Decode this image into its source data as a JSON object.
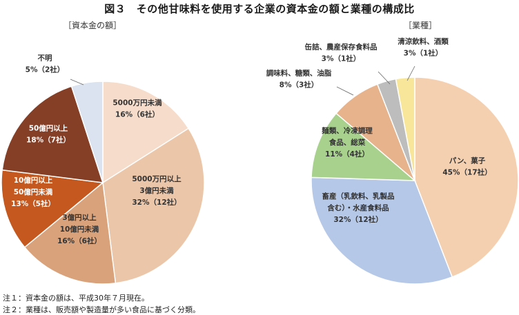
{
  "title": "図３　その他甘味料を使用する企業の資本金の額と業種の構成比",
  "notes": [
    "注１：資本金の額は、平成30年７月現在。",
    "注２：業種は、販売額や製造量が多い食品に基づく分類。"
  ],
  "chart_data": [
    {
      "type": "pie",
      "subtitle": "［資本金の額］",
      "slices": [
        {
          "label": [
            "5000万円未満",
            "16%（6社）"
          ],
          "percent": 16,
          "count": 6,
          "color": "#f6dccb"
        },
        {
          "label": [
            "5000万円以上",
            "3億円未満",
            "32%（12社）"
          ],
          "percent": 32,
          "count": 12,
          "color": "#ebc6a9"
        },
        {
          "label": [
            "3億円以上",
            "10億円未満",
            "16%（6社）"
          ],
          "percent": 16,
          "count": 6,
          "color": "#d9a27b"
        },
        {
          "label": [
            "10億円以上",
            "50億円未満",
            "13%（5社）"
          ],
          "percent": 13,
          "count": 5,
          "color": "#c4581e"
        },
        {
          "label": [
            "50億円以上",
            "18%（7社）"
          ],
          "percent": 18,
          "count": 7,
          "color": "#853f27"
        },
        {
          "label": [
            "不明",
            "5%（2社）"
          ],
          "percent": 5,
          "count": 2,
          "color": "#dae3ef"
        }
      ]
    },
    {
      "type": "pie",
      "subtitle": "［業種］",
      "slices": [
        {
          "label": [
            "パン、菓子",
            "45%（17社）"
          ],
          "percent": 45,
          "count": 17,
          "color": "#f4d0b0"
        },
        {
          "label": [
            "畜産（乳飲料、乳製品",
            "含む）・水産食料品",
            "32%（12社）"
          ],
          "percent": 32,
          "count": 12,
          "color": "#b6c8e7"
        },
        {
          "label": [
            "麺類、冷凍調理",
            "食品、総菜",
            "11%（4社）"
          ],
          "percent": 11,
          "count": 4,
          "color": "#a9d18e"
        },
        {
          "label": [
            "調味料、糖類、油脂",
            "8%（3社）"
          ],
          "percent": 8,
          "count": 3,
          "color": "#e6b38d"
        },
        {
          "label": [
            "缶詰、農産保存食料品",
            "3%（1社）"
          ],
          "percent": 3,
          "count": 1,
          "color": "#bdbdbd"
        },
        {
          "label": [
            "清涼飲料、酒類",
            "3%（1社）"
          ],
          "percent": 3,
          "count": 1,
          "color": "#f8e79a"
        }
      ]
    }
  ]
}
